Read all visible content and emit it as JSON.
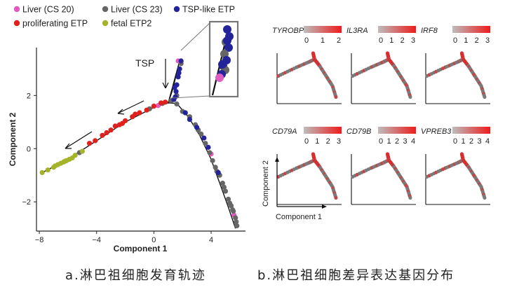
{
  "legend": {
    "items": [
      {
        "label": "Liver (CS 20)",
        "color": "#e05cc0"
      },
      {
        "label": "Liver (CS 23)",
        "color": "#666666"
      },
      {
        "label": "TSP-like ETP",
        "color": "#23239a"
      },
      {
        "label": "proliferating ETP",
        "color": "#e0201c"
      },
      {
        "label": "fetal ETP2",
        "color": "#a5b32a"
      }
    ]
  },
  "colors": {
    "cs20": "#e05cc0",
    "cs23": "#666666",
    "tsp": "#23239a",
    "prolif": "#e0201c",
    "etp2": "#a5b32a"
  },
  "captions": {
    "a": "a.淋巴祖细胞发育轨迹",
    "b": "b.淋巴祖细胞差异表达基因分布"
  },
  "annotations": {
    "tsp_label": "TSP"
  },
  "chart_data": [
    {
      "type": "scatter",
      "xlabel": "Component 1",
      "ylabel": "Component 2",
      "xlim": [
        -8.2,
        6.4
      ],
      "ylim": [
        -3.1,
        3.8
      ],
      "xticks": [
        -8,
        -4,
        0,
        4
      ],
      "yticks": [
        -2,
        0,
        2
      ],
      "trajectory": [
        [
          5.7,
          -3.0
        ],
        [
          5.2,
          -2.2
        ],
        [
          4.6,
          -1.3
        ],
        [
          4.0,
          -0.4
        ],
        [
          3.2,
          0.5
        ],
        [
          2.4,
          1.2
        ],
        [
          1.6,
          1.7
        ],
        [
          1.0,
          1.72
        ],
        [
          1.3,
          2.2
        ],
        [
          1.8,
          3.3
        ],
        [
          1.0,
          1.72
        ],
        [
          0.0,
          1.55
        ],
        [
          -2.0,
          1.0
        ],
        [
          -4.0,
          0.3
        ],
        [
          -6.0,
          -0.4
        ],
        [
          -7.8,
          -0.9
        ]
      ],
      "series": [
        {
          "name": "Liver (CS 20)",
          "color_key": "cs20",
          "points": [
            [
              1.7,
              3.3
            ],
            [
              0.3,
              1.62
            ],
            [
              4.0,
              -0.2
            ],
            [
              5.6,
              -2.5
            ]
          ]
        },
        {
          "name": "Liver (CS 23)",
          "color_key": "cs23",
          "points": [
            [
              1.9,
              3.2
            ],
            [
              1.6,
              2.0
            ],
            [
              1.2,
              1.8
            ],
            [
              1.6,
              1.68
            ],
            [
              2.0,
              1.4
            ],
            [
              2.5,
              1.2
            ],
            [
              2.9,
              0.9
            ],
            [
              3.3,
              0.55
            ],
            [
              3.6,
              0.2
            ],
            [
              3.9,
              -0.15
            ],
            [
              4.1,
              -0.45
            ],
            [
              4.3,
              -0.7
            ],
            [
              4.6,
              -1.0
            ],
            [
              4.8,
              -1.3
            ],
            [
              5.0,
              -1.6
            ],
            [
              5.2,
              -1.9
            ],
            [
              5.4,
              -2.15
            ],
            [
              5.55,
              -2.35
            ],
            [
              5.7,
              -2.6
            ],
            [
              5.8,
              -2.9
            ],
            [
              5.75,
              -2.75
            ],
            [
              5.3,
              -2.05
            ],
            [
              4.4,
              -0.85
            ],
            [
              -0.3,
              1.5
            ],
            [
              -5.2,
              -0.15
            ],
            [
              0.6,
              1.7
            ],
            [
              3.1,
              0.7
            ],
            [
              4.9,
              -1.45
            ],
            [
              5.5,
              -2.3
            ]
          ]
        },
        {
          "name": "TSP-like ETP",
          "color_key": "tsp",
          "points": [
            [
              1.9,
              3.3
            ],
            [
              1.8,
              3.0
            ],
            [
              1.7,
              2.7
            ],
            [
              1.6,
              2.4
            ],
            [
              1.55,
              2.15
            ],
            [
              1.5,
              1.95
            ],
            [
              1.4,
              1.85
            ],
            [
              2.2,
              1.35
            ],
            [
              3.0,
              0.8
            ],
            [
              3.5,
              0.4
            ],
            [
              3.8,
              0.05
            ],
            [
              4.5,
              -0.9
            ],
            [
              1.75,
              2.85
            ],
            [
              1.45,
              2.3
            ],
            [
              2.5,
              1.1
            ]
          ]
        },
        {
          "name": "proliferating ETP",
          "color_key": "prolif",
          "points": [
            [
              0.5,
              1.72
            ],
            [
              0.0,
              1.6
            ],
            [
              -0.5,
              1.45
            ],
            [
              -1.0,
              1.35
            ],
            [
              -1.5,
              1.2
            ],
            [
              -2.0,
              1.05
            ],
            [
              -2.4,
              0.9
            ],
            [
              -2.7,
              0.85
            ],
            [
              -3.0,
              0.7
            ],
            [
              -3.3,
              0.6
            ],
            [
              -3.6,
              0.5
            ],
            [
              -4.1,
              0.3
            ],
            [
              -4.5,
              0.2
            ],
            [
              0.8,
              1.75
            ],
            [
              -1.3,
              1.3
            ],
            [
              -2.2,
              0.95
            ]
          ]
        },
        {
          "name": "fetal ETP2",
          "color_key": "etp2",
          "points": [
            [
              -7.8,
              -0.9
            ],
            [
              -7.4,
              -0.8
            ],
            [
              -7.0,
              -0.7
            ],
            [
              -6.7,
              -0.6
            ],
            [
              -6.5,
              -0.55
            ],
            [
              -6.3,
              -0.5
            ],
            [
              -6.1,
              -0.45
            ],
            [
              -5.9,
              -0.4
            ],
            [
              -5.7,
              -0.35
            ],
            [
              -5.5,
              -0.25
            ],
            [
              -5.0,
              -0.1
            ],
            [
              -6.9,
              -0.65
            ],
            [
              -6.2,
              -0.47
            ]
          ]
        }
      ]
    },
    {
      "type": "scatter",
      "xlabel": "Component 1",
      "ylabel": "Component 2",
      "panels": [
        {
          "gene": "TYROBP",
          "ticks": [
            "0",
            "1",
            "2"
          ]
        },
        {
          "gene": "IL3RA",
          "ticks": [
            "0",
            "1",
            "2",
            "3"
          ]
        },
        {
          "gene": "IRF8",
          "ticks": [
            "0",
            "1",
            "2",
            "3"
          ]
        },
        {
          "gene": "CD79A",
          "ticks": [
            "0",
            "1",
            "2",
            "3"
          ]
        },
        {
          "gene": "CD79B",
          "ticks": [
            "0",
            "1",
            "2",
            "3",
            "4"
          ]
        },
        {
          "gene": "VPREB3",
          "ticks": [
            "0",
            "1",
            "2",
            "3",
            "4"
          ]
        }
      ]
    }
  ]
}
